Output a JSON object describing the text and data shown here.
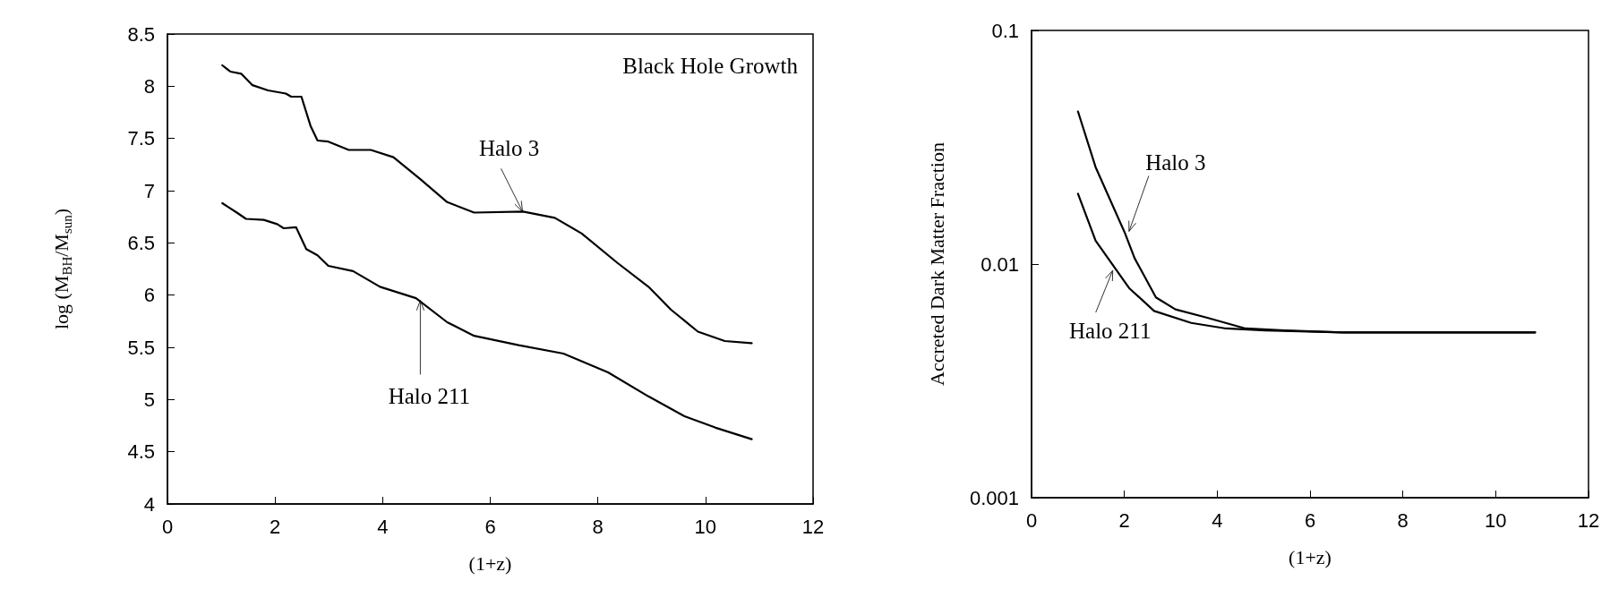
{
  "chart_data": [
    {
      "type": "line",
      "title": "Black Hole Growth",
      "xlabel": "(1+z)",
      "ylabel": "log (M$_{BH}$/M$_{sun}$)",
      "xlim": [
        0,
        12
      ],
      "xticks": [
        0,
        2,
        4,
        6,
        8,
        10,
        12
      ],
      "ylim": [
        4,
        8.5
      ],
      "yticks": [
        4,
        4.5,
        5,
        5.5,
        6,
        6.5,
        7,
        7.5,
        8,
        8.5
      ],
      "grid": false,
      "marker": "none",
      "line_style": "solid",
      "series": [
        {
          "color": "#000000",
          "x": [
            1.02,
            1.17,
            1.37,
            1.58,
            1.87,
            2.2,
            2.3,
            2.49,
            2.66,
            2.79,
            2.99,
            3.37,
            3.78,
            4.2,
            4.7,
            5.2,
            5.7,
            6.61,
            7.2,
            7.7,
            8.36,
            8.94,
            9.36,
            9.86,
            10.36,
            10.86
          ],
          "values": [
            8.2,
            8.14,
            8.12,
            8.01,
            7.96,
            7.93,
            7.9,
            7.9,
            7.62,
            7.48,
            7.47,
            7.39,
            7.39,
            7.32,
            7.11,
            6.89,
            6.79,
            6.8,
            6.74,
            6.59,
            6.31,
            6.08,
            5.86,
            5.65,
            5.56,
            5.54
          ]
        },
        {
          "color": "#000000",
          "x": [
            1.02,
            1.29,
            1.46,
            1.79,
            2.04,
            2.16,
            2.39,
            2.58,
            2.79,
            2.99,
            3.45,
            3.95,
            4.62,
            5.2,
            5.7,
            6.53,
            7.36,
            8.19,
            8.94,
            9.61,
            10.19,
            10.86
          ],
          "values": [
            6.88,
            6.79,
            6.73,
            6.72,
            6.68,
            6.64,
            6.65,
            6.44,
            6.38,
            6.28,
            6.23,
            6.08,
            5.97,
            5.74,
            5.61,
            5.52,
            5.44,
            5.26,
            5.03,
            4.84,
            4.73,
            4.62
          ]
        }
      ],
      "annotations": [
        {
          "text": "Halo 3",
          "x": 6.6,
          "y": 6.8
        },
        {
          "text": "Halo 211",
          "x": 4.7,
          "y": 5.95
        }
      ]
    },
    {
      "type": "line",
      "xlabel": "(1+z)",
      "ylabel": "Accreted Dark Matter Fraction",
      "log": "y",
      "xlim": [
        0,
        12
      ],
      "xticks": [
        0,
        2,
        4,
        6,
        8,
        10,
        12
      ],
      "ylim": [
        0.001,
        0.1
      ],
      "yticks": [
        0.001,
        0.01,
        0.1
      ],
      "grid": false,
      "marker": "none",
      "line_style": "solid",
      "series": [
        {
          "color": "#000000",
          "x": [
            1.0,
            1.38,
            2.01,
            2.22,
            2.68,
            3.1,
            3.77,
            4.61,
            5.45,
            6.71,
            10.85
          ],
          "values": [
            0.045,
            0.026,
            0.0136,
            0.0106,
            0.0072,
            0.0064,
            0.0059,
            0.0053,
            0.0052,
            0.0051,
            0.0051
          ]
        },
        {
          "color": "#000000",
          "x": [
            1.0,
            1.38,
            2.1,
            2.64,
            3.44,
            4.19,
            5.03,
            6.71,
            10.85
          ],
          "values": [
            0.02,
            0.0126,
            0.0079,
            0.0063,
            0.0056,
            0.0053,
            0.0052,
            0.0051,
            0.0051
          ]
        }
      ],
      "annotations": [
        {
          "text": "Halo 3",
          "x": 2.1,
          "y": 0.0138
        },
        {
          "text": "Halo 211",
          "x": 1.75,
          "y": 0.0094
        }
      ]
    }
  ]
}
